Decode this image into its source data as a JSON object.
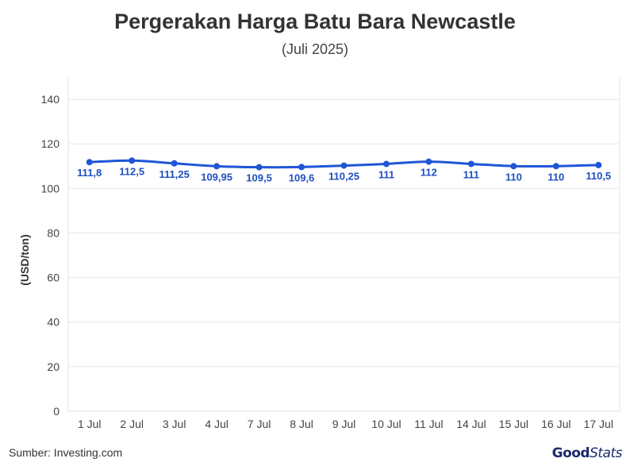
{
  "header": {
    "title": "Pergerakan Harga Batu Bara Newcastle",
    "subtitle": "(Juli 2025)"
  },
  "footer": {
    "source": "Sumber: Investing.com",
    "logo_bold": "Good",
    "logo_light": "Stats"
  },
  "colors": {
    "line": "#1f56d6",
    "grid": "#e6e6e6",
    "label": "#1f4fbf"
  },
  "chart_data": {
    "type": "line",
    "title": "Pergerakan Harga Batu Bara Newcastle",
    "subtitle": "(Juli 2025)",
    "xlabel": "",
    "ylabel": "(USD/ton)",
    "ylim": [
      0,
      150
    ],
    "yticks": [
      "0",
      "20",
      "40",
      "60",
      "80",
      "100",
      "120",
      "140"
    ],
    "grid": true,
    "categories": [
      "1 Jul",
      "2 Jul",
      "3 Jul",
      "4 Jul",
      "7 Jul",
      "8 Jul",
      "9 Jul",
      "10 Jul",
      "11 Jul",
      "14 Jul",
      "15 Jul",
      "16 Jul",
      "17 Jul"
    ],
    "values": [
      111.8,
      112.5,
      111.25,
      109.95,
      109.5,
      109.6,
      110.25,
      111,
      112,
      111,
      110,
      110,
      110.5
    ],
    "data_labels": [
      "111,8",
      "112,5",
      "111,25",
      "109,95",
      "109,5",
      "109,6",
      "110,25",
      "111",
      "112",
      "111",
      "110",
      "110",
      "110,5"
    ]
  }
}
